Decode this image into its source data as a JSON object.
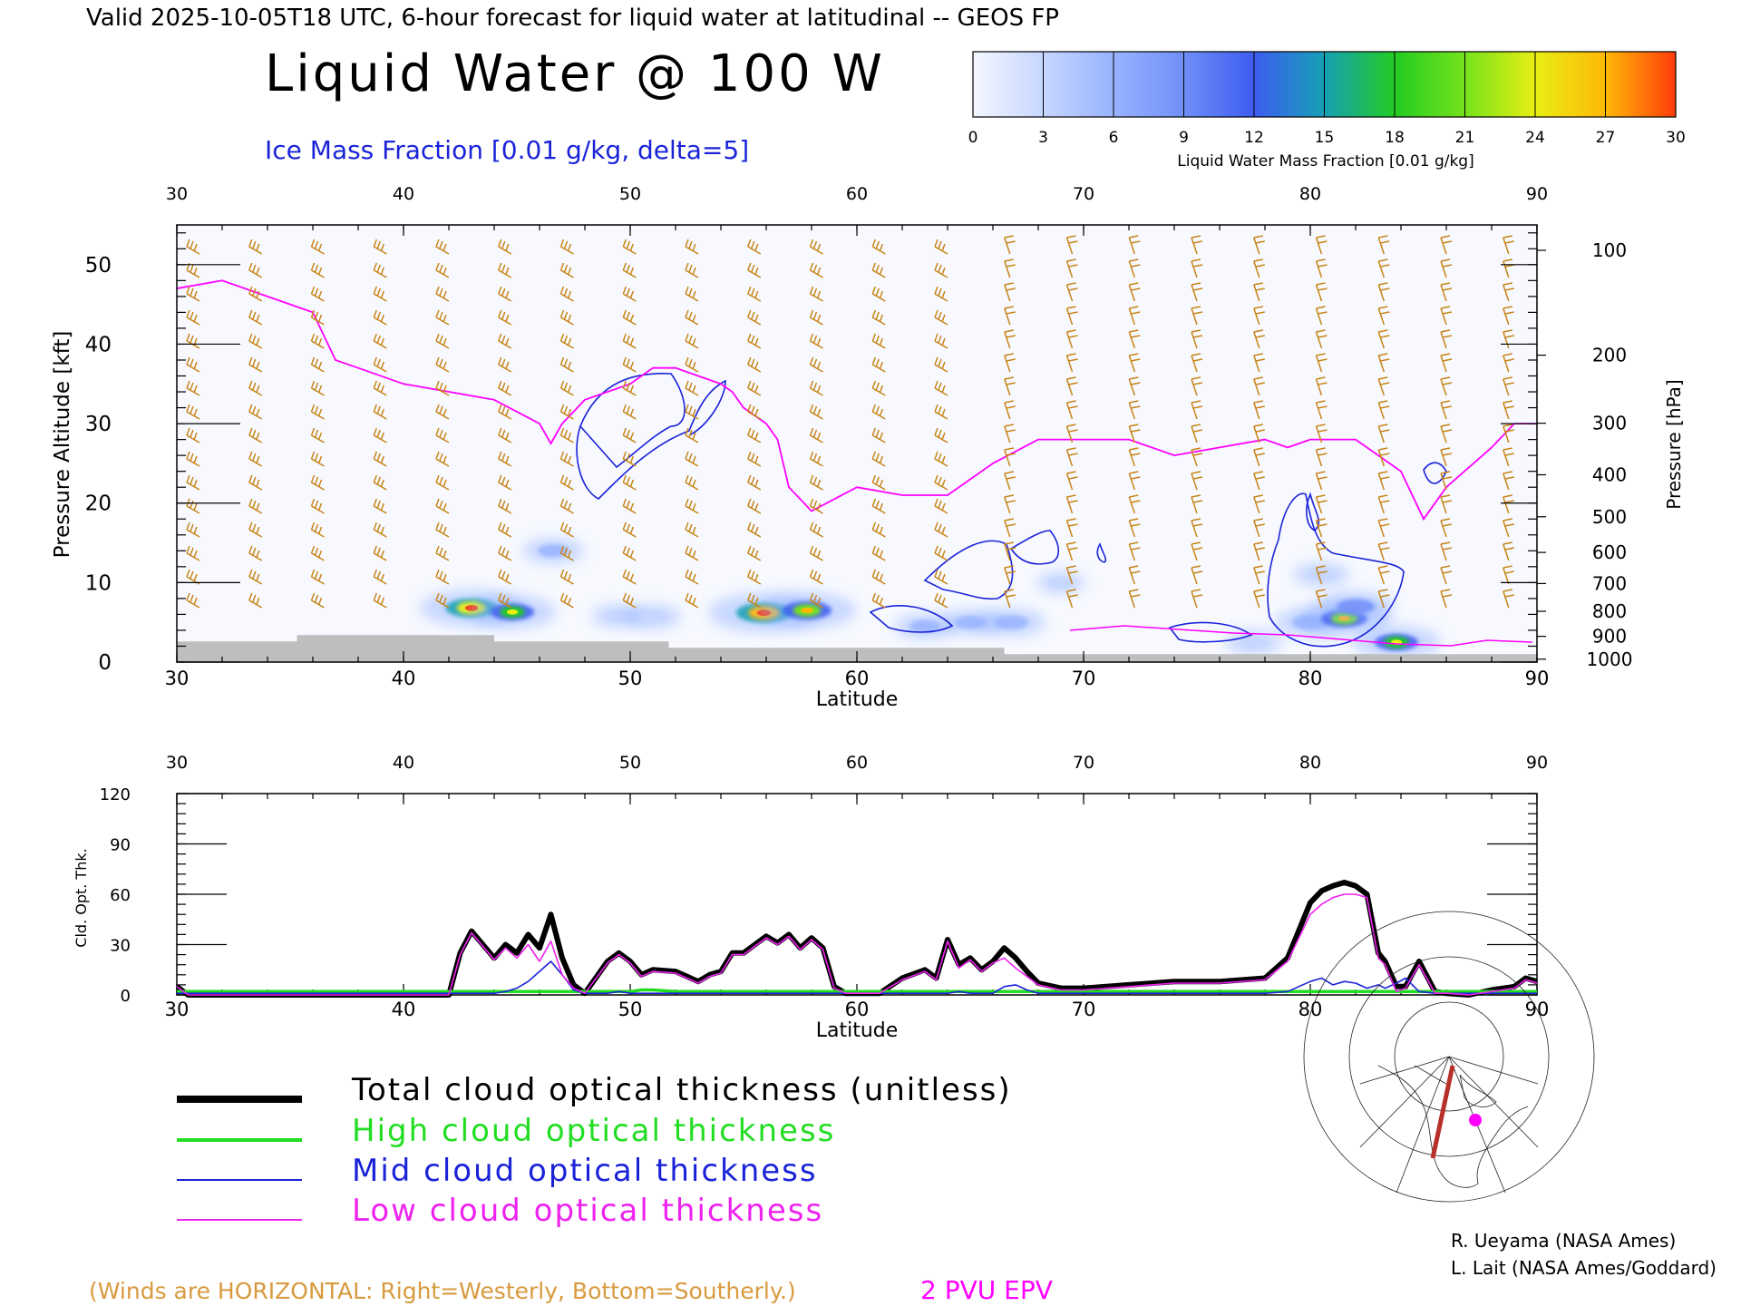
{
  "header": {
    "valid_line": "Valid 2025-10-05T18 UTC, 6-hour forecast for liquid water at latitudinal -- GEOS FP",
    "main_title": "Liquid Water @ 100 W",
    "ice_label": "Ice Mass Fraction [0.01 g/kg, delta=5]"
  },
  "colorbar": {
    "title": "Liquid Water Mass Fraction [0.01 g/kg]",
    "ticks": [
      "0",
      "3",
      "6",
      "9",
      "12",
      "15",
      "18",
      "21",
      "24",
      "27",
      "30"
    ],
    "colors": [
      "#f4f7ff",
      "#c6d6ff",
      "#98b3ff",
      "#6f8ff8",
      "#3d5cf0",
      "#16a0b4",
      "#22cc22",
      "#76e21c",
      "#e8ee14",
      "#ffb808",
      "#ff3c0a"
    ]
  },
  "colors": {
    "epv": "#ff00ff",
    "ice_contour": "#1a23d8",
    "wind": "#c88416",
    "terrain": "#bebebe",
    "total": "#000000",
    "high": "#22dd22",
    "mid": "#1a23d8",
    "low": "#ee22ee"
  },
  "upper_axes": {
    "top_ticks": [
      "30",
      "40",
      "50",
      "60",
      "70",
      "80",
      "90"
    ],
    "bottom_ticks": [
      "30",
      "40",
      "50",
      "60",
      "70",
      "80",
      "90"
    ],
    "xlabel": "Latitude",
    "left_ticks": [
      "50",
      "40",
      "30",
      "20",
      "10",
      "0"
    ],
    "left_label": "Pressure Altitude [kft]",
    "right_ticks": [
      "100",
      "200",
      "300",
      "400",
      "500",
      "600",
      "700",
      "800",
      "900",
      "1000"
    ],
    "right_label": "Pressure [hPa]"
  },
  "lower_axes": {
    "top_ticks": [
      "30",
      "40",
      "50",
      "60",
      "70",
      "80",
      "90"
    ],
    "bottom_ticks": [
      "30",
      "40",
      "50",
      "60",
      "70",
      "80",
      "90"
    ],
    "xlabel": "Latitude",
    "left_ticks": [
      "120",
      "90",
      "60",
      "30",
      "0"
    ],
    "ylabel": "Cld. Opt. Thk."
  },
  "legend": {
    "total": "Total cloud optical thickness (unitless)",
    "high": "High cloud optical thickness",
    "mid": "Mid cloud optical thickness",
    "low": "Low cloud optical thickness"
  },
  "footer": {
    "winds_note": "(Winds are HORIZONTAL: Right=Westerly, Bottom=Southerly.)",
    "epv_label": "2 PVU EPV",
    "credit1": "R. Ueyama (NASA Ames)",
    "credit2": "L. Lait (NASA Ames/Goddard)"
  },
  "inset_map": {
    "icon": "polar-map-icon"
  },
  "chart_data": [
    {
      "type": "heatmap",
      "title": "Liquid Water @ 100 W",
      "xlabel": "Latitude",
      "ylabel": "Pressure Altitude [kft]",
      "xlim": [
        30,
        90
      ],
      "ylim": [
        0,
        55
      ],
      "grid": false,
      "epv_2pvu_kft": {
        "lat": [
          30,
          32,
          34,
          36,
          37,
          38,
          40,
          42,
          44,
          46,
          46.5,
          47,
          48,
          50,
          51,
          52,
          53,
          54,
          54.5,
          55,
          56,
          56.5,
          57,
          58,
          60,
          62,
          64,
          66,
          68,
          70,
          72,
          74,
          76,
          78,
          79,
          80,
          82,
          84,
          85,
          86,
          88,
          89,
          90
        ],
        "alt": [
          47,
          48,
          46,
          44,
          38,
          37,
          35,
          34,
          33,
          30,
          27.5,
          30,
          33,
          35,
          37,
          37,
          36,
          35,
          34,
          32,
          30,
          28,
          22,
          19,
          22,
          21,
          21,
          25,
          28,
          28,
          28,
          26,
          27,
          28,
          27,
          28,
          28,
          24,
          18,
          22,
          27,
          30,
          30
        ]
      },
      "liquid_water_cells": [
        {
          "lat": 43.0,
          "alt_kft": 6.8,
          "value": 24
        },
        {
          "lat": 44.8,
          "alt_kft": 6.3,
          "value": 18
        },
        {
          "lat": 46.6,
          "alt_kft": 14.0,
          "value": 8
        },
        {
          "lat": 49.5,
          "alt_kft": 5.8,
          "value": 5
        },
        {
          "lat": 51.0,
          "alt_kft": 5.7,
          "value": 6
        },
        {
          "lat": 55.9,
          "alt_kft": 6.2,
          "value": 27
        },
        {
          "lat": 57.8,
          "alt_kft": 6.5,
          "value": 22
        },
        {
          "lat": 63.0,
          "alt_kft": 4.5,
          "value": 8
        },
        {
          "lat": 65.0,
          "alt_kft": 5.0,
          "value": 9
        },
        {
          "lat": 66.8,
          "alt_kft": 5.0,
          "value": 11
        },
        {
          "lat": 69.0,
          "alt_kft": 10.0,
          "value": 3
        },
        {
          "lat": 77.5,
          "alt_kft": 2.5,
          "value": 6
        },
        {
          "lat": 80.0,
          "alt_kft": 5.0,
          "value": 12
        },
        {
          "lat": 81.5,
          "alt_kft": 5.5,
          "value": 20
        },
        {
          "lat": 82.0,
          "alt_kft": 7.0,
          "value": 14
        },
        {
          "lat": 83.8,
          "alt_kft": 2.5,
          "value": 18
        },
        {
          "lat": 80.5,
          "alt_kft": 11.0,
          "value": 6
        }
      ],
      "terrain_kft": {
        "lat": [
          30,
          35.3,
          35.3,
          44,
          44,
          51.7,
          51.7,
          66.5,
          66.5,
          90
        ],
        "alt": [
          2.6,
          2.6,
          3.4,
          3.4,
          2.6,
          2.6,
          1.8,
          1.8,
          1.0,
          1.0
        ]
      }
    },
    {
      "type": "line",
      "xlabel": "Latitude",
      "ylabel": "Cld. Opt. Thk.",
      "xlim": [
        30,
        90
      ],
      "ylim": [
        0,
        120
      ],
      "legend": "below",
      "x": [
        30,
        30.5,
        31,
        42,
        42.5,
        43,
        43.5,
        44,
        44.5,
        45,
        45.5,
        46,
        46.5,
        47,
        47.5,
        48,
        49,
        49.5,
        50,
        50.5,
        51,
        52,
        53,
        53.5,
        54,
        54.5,
        55,
        55.5,
        56,
        56.5,
        57,
        57.5,
        58,
        58.5,
        59,
        59.5,
        60,
        61,
        62,
        63,
        63.5,
        64,
        64.5,
        65,
        65.5,
        66,
        66.5,
        67,
        67.5,
        68,
        69,
        70,
        72,
        74,
        76,
        78,
        79,
        80,
        80.5,
        81,
        81.5,
        82,
        82.5,
        83,
        83.3,
        83.8,
        84.2,
        84.8,
        85.5,
        86,
        87,
        88,
        89,
        89.5,
        90
      ],
      "series": [
        {
          "name": "Total cloud optical thickness (unitless)",
          "values": [
            5,
            0,
            0,
            0,
            25,
            38,
            30,
            22,
            30,
            25,
            36,
            28,
            48,
            22,
            6,
            1,
            20,
            25,
            20,
            12,
            15,
            14,
            8,
            12,
            14,
            25,
            25,
            30,
            35,
            31,
            36,
            28,
            34,
            28,
            5,
            1,
            1,
            1,
            10,
            15,
            10,
            33,
            18,
            22,
            15,
            20,
            28,
            22,
            14,
            7,
            4,
            4,
            6,
            8,
            8,
            10,
            22,
            55,
            62,
            65,
            67,
            65,
            60,
            25,
            20,
            5,
            5,
            20,
            2,
            1,
            0,
            3,
            5,
            10,
            8
          ]
        },
        {
          "name": "High cloud optical thickness",
          "values": [
            2,
            2,
            2,
            2,
            2,
            2,
            2,
            2,
            2,
            2,
            2,
            2,
            2,
            2,
            2,
            2,
            2,
            2,
            2,
            3,
            3,
            2,
            2,
            2,
            2,
            2,
            2,
            2,
            2,
            2,
            2,
            2,
            2,
            2,
            2,
            2,
            2,
            2,
            2,
            2,
            2,
            2,
            2,
            2,
            2,
            2,
            2,
            2,
            2,
            2,
            2,
            2,
            2,
            2,
            2,
            2,
            2,
            2,
            2,
            2,
            2,
            2,
            2,
            2,
            2,
            2,
            2,
            2,
            2,
            2,
            2,
            2,
            2,
            2,
            2
          ]
        },
        {
          "name": "Mid cloud optical thickness",
          "values": [
            1,
            1,
            1,
            1,
            1,
            1,
            1,
            1,
            2,
            4,
            8,
            14,
            20,
            12,
            3,
            1,
            1,
            2,
            1,
            1,
            1,
            1,
            1,
            1,
            1,
            1,
            1,
            1,
            1,
            1,
            1,
            1,
            1,
            1,
            1,
            1,
            1,
            1,
            1,
            1,
            1,
            1,
            2,
            1,
            1,
            1,
            5,
            6,
            3,
            1,
            1,
            1,
            1,
            1,
            1,
            1,
            2,
            8,
            10,
            6,
            8,
            7,
            4,
            6,
            4,
            7,
            10,
            2,
            1,
            1,
            1,
            1,
            1,
            1,
            1
          ]
        },
        {
          "name": "Low cloud optical thickness",
          "values": [
            5,
            0,
            0,
            0,
            24,
            37,
            29,
            21,
            28,
            22,
            30,
            20,
            32,
            12,
            4,
            1,
            19,
            24,
            19,
            11,
            14,
            13,
            7,
            11,
            13,
            24,
            24,
            29,
            34,
            30,
            35,
            27,
            33,
            27,
            4,
            1,
            1,
            1,
            9,
            14,
            9,
            32,
            16,
            21,
            14,
            19,
            22,
            16,
            11,
            6,
            3,
            3,
            5,
            7,
            7,
            9,
            20,
            48,
            54,
            58,
            60,
            60,
            58,
            22,
            18,
            2,
            4,
            18,
            1,
            1,
            0,
            2,
            4,
            9,
            7
          ]
        }
      ]
    }
  ]
}
